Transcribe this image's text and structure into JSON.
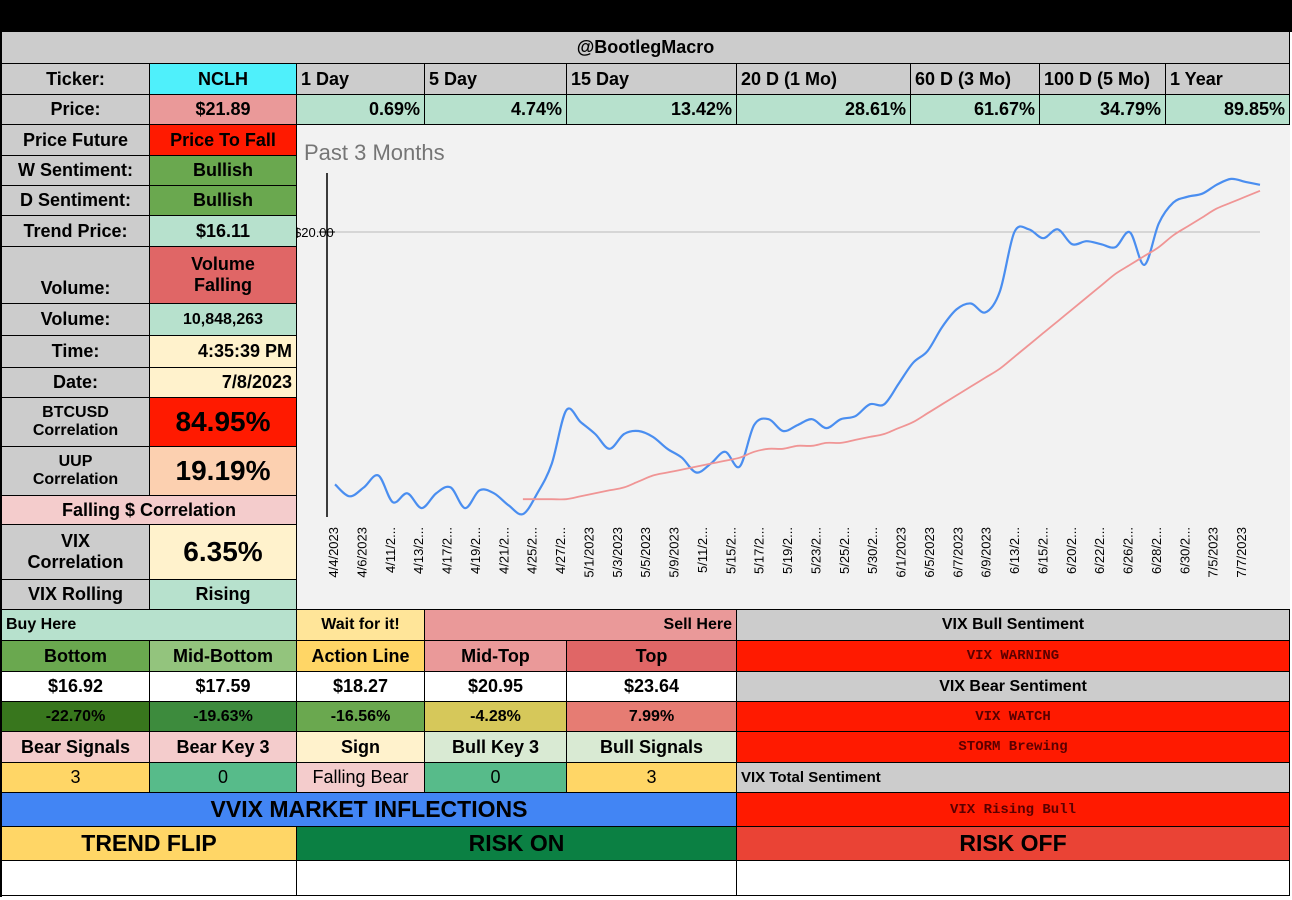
{
  "header": {
    "handle": "@BootlegMacro"
  },
  "ticker": {
    "label": "Ticker:",
    "value": "NCLH"
  },
  "periods": [
    "1 Day",
    "5 Day",
    "15 Day",
    "20 D (1 Mo)",
    "60 D (3 Mo)",
    "100 D (5 Mo)",
    "1 Year"
  ],
  "price": {
    "label": "Price:",
    "value": "$21.89"
  },
  "returns": [
    "0.69%",
    "4.74%",
    "13.42%",
    "28.61%",
    "61.67%",
    "34.79%",
    "89.85%"
  ],
  "price_future": {
    "label": "Price Future",
    "value": "Price To Fall"
  },
  "w_sentiment": {
    "label": "W Sentiment:",
    "value": "Bullish"
  },
  "d_sentiment": {
    "label": "D Sentiment:",
    "value": "Bullish"
  },
  "trend_price": {
    "label": "Trend Price:",
    "value": "$16.11"
  },
  "volume_trend": {
    "label": "Volume:",
    "value_line1": "Volume",
    "value_line2": "Falling"
  },
  "volume": {
    "label": "Volume:",
    "value": "10,848,263"
  },
  "time": {
    "label": "Time:",
    "value": "4:35:39 PM"
  },
  "date": {
    "label": "Date:",
    "value": "7/8/2023"
  },
  "btc_corr": {
    "label_line1": "BTCUSD",
    "label_line2": "Correlation",
    "value": "84.95%"
  },
  "uup_corr": {
    "label_line1": "UUP",
    "label_line2": "Correlation",
    "value": "19.19%"
  },
  "falling_corr": {
    "label": "Falling $ Correlation"
  },
  "vix_corr": {
    "label_line1": "VIX",
    "label_line2": "Correlation",
    "value": "6.35%"
  },
  "vix_rolling": {
    "label": "VIX Rolling",
    "value": "Rising"
  },
  "levels": {
    "buy_here": "Buy Here",
    "wait": "Wait for it!",
    "sell_here": "Sell Here",
    "headers": [
      "Bottom",
      "Mid-Bottom",
      "Action Line",
      "Mid-Top",
      "Top"
    ],
    "prices": [
      "$16.92",
      "$17.59",
      "$18.27",
      "$20.95",
      "$23.64"
    ],
    "pcts": [
      "-22.70%",
      "-19.63%",
      "-16.56%",
      "-4.28%",
      "7.99%"
    ]
  },
  "signals": {
    "headers": [
      "Bear Signals",
      "Bear Key 3",
      "Sign",
      "Bull Key 3",
      "Bull Signals"
    ],
    "values": [
      "3",
      "0",
      "Falling Bear",
      "0",
      "3"
    ]
  },
  "vix_panel": {
    "bull_title": "VIX Bull Sentiment",
    "bull_value": "VIX WARNING",
    "bear_title": "VIX Bear Sentiment",
    "bear_value1": "VIX WATCH",
    "bear_value2": "STORM Brewing",
    "total_title": "VIX Total Sentiment",
    "total_value": "VIX Rising Bull"
  },
  "vvix": {
    "title": "VVIX MARKET INFLECTIONS",
    "trend_flip": "TREND FLIP",
    "risk_on": "RISK ON",
    "risk_off": "RISK OFF"
  },
  "colors": {
    "cyan": "#4ff0fb",
    "gray": "#cccccc",
    "lightgreen": "#b7e1cd",
    "green": "#6aa84f",
    "red": "#ff1a00",
    "salmon": "#e06666",
    "pink": "#ea9999",
    "lightpink": "#f4cccc",
    "lightyellow": "#fff2cc",
    "peach": "#fcd0b0",
    "orange": "#ffd666",
    "blue": "#4285f4",
    "darkgreen": "#0b8043",
    "riskred": "#ea4335",
    "olive": "#d6c85a",
    "midgreen": "#38761d",
    "mint": "#57bb8a",
    "line_blue": "#4a8ef0",
    "line_pink": "#f09595"
  },
  "chart_data": {
    "type": "line",
    "title": "Past 3 Months",
    "y_tick_label": "$20.00",
    "x": [
      "4/4/2023",
      "4/5/2023",
      "4/6/2023",
      "4/10/2023",
      "4/11/2023",
      "4/12/2023",
      "4/13/2023",
      "4/14/2023",
      "4/17/2023",
      "4/18/2023",
      "4/19/2023",
      "4/20/2023",
      "4/21/2023",
      "4/24/2023",
      "4/25/2023",
      "4/26/2023",
      "4/27/2023",
      "4/28/2023",
      "5/1/2023",
      "5/2/2023",
      "5/3/2023",
      "5/4/2023",
      "5/5/2023",
      "5/8/2023",
      "5/9/2023",
      "5/10/2023",
      "5/11/2023",
      "5/12/2023",
      "5/15/2023",
      "5/16/2023",
      "5/17/2023",
      "5/18/2023",
      "5/19/2023",
      "5/22/2023",
      "5/23/2023",
      "5/24/2023",
      "5/25/2023",
      "5/26/2023",
      "5/30/2023",
      "5/31/2023",
      "6/1/2023",
      "6/2/2023",
      "6/5/2023",
      "6/6/2023",
      "6/7/2023",
      "6/8/2023",
      "6/9/2023",
      "6/12/2023",
      "6/13/2023",
      "6/14/2023",
      "6/15/2023",
      "6/16/2023",
      "6/20/2023",
      "6/21/2023",
      "6/22/2023",
      "6/23/2023",
      "6/26/2023",
      "6/27/2023",
      "6/28/2023",
      "6/29/2023",
      "6/30/2023",
      "7/3/2023",
      "7/5/2023",
      "7/6/2023",
      "7/7/2023"
    ],
    "x_tick_labels": [
      "4/4/2023",
      "4/6/2023",
      "4/11/2...",
      "4/13/2...",
      "4/17/2...",
      "4/19/2...",
      "4/21/2...",
      "4/25/2...",
      "4/27/2...",
      "5/1/2023",
      "5/3/2023",
      "5/5/2023",
      "5/9/2023",
      "5/11/2...",
      "5/15/2...",
      "5/17/2...",
      "5/19/2...",
      "5/23/2...",
      "5/25/2...",
      "5/30/2...",
      "6/1/2023",
      "6/5/2023",
      "6/7/2023",
      "6/9/2023",
      "6/13/2...",
      "6/15/2...",
      "6/20/2...",
      "6/22/2...",
      "6/26/2...",
      "6/28/2...",
      "6/30/2...",
      "7/5/2023",
      "7/7/2023"
    ],
    "ylim": [
      10.7,
      22.5
    ],
    "series": [
      {
        "name": "Price",
        "values": [
          11.9,
          11.5,
          11.8,
          12.2,
          11.3,
          11.6,
          11.1,
          11.6,
          11.8,
          11.1,
          11.7,
          11.6,
          11.2,
          10.9,
          11.6,
          12.6,
          14.4,
          14.0,
          13.6,
          13.1,
          13.6,
          13.7,
          13.5,
          13.1,
          12.8,
          12.3,
          12.6,
          13.0,
          12.5,
          13.9,
          14.1,
          13.7,
          13.9,
          14.1,
          13.8,
          14.1,
          14.2,
          14.6,
          14.6,
          15.3,
          16.0,
          16.4,
          17.2,
          17.8,
          18.0,
          17.7,
          18.4,
          20.4,
          20.5,
          20.2,
          20.5,
          20.0,
          20.1,
          20.0,
          19.9,
          20.4,
          19.3,
          20.7,
          21.4,
          21.6,
          21.7,
          22.0,
          22.2,
          22.1,
          22.0
        ]
      },
      {
        "name": "Trend",
        "values": [
          null,
          null,
          null,
          null,
          null,
          null,
          null,
          null,
          null,
          null,
          null,
          null,
          null,
          11.4,
          11.4,
          11.4,
          11.4,
          11.5,
          11.6,
          11.7,
          11.8,
          12.0,
          12.2,
          12.3,
          12.4,
          12.5,
          12.6,
          12.7,
          12.8,
          13.0,
          13.1,
          13.1,
          13.2,
          13.2,
          13.3,
          13.3,
          13.4,
          13.5,
          13.6,
          13.8,
          14.0,
          14.3,
          14.6,
          14.9,
          15.2,
          15.5,
          15.8,
          16.2,
          16.6,
          17.0,
          17.4,
          17.8,
          18.2,
          18.6,
          19.0,
          19.3,
          19.6,
          19.9,
          20.3,
          20.6,
          20.9,
          21.2,
          21.4,
          21.6,
          21.8
        ]
      }
    ]
  }
}
